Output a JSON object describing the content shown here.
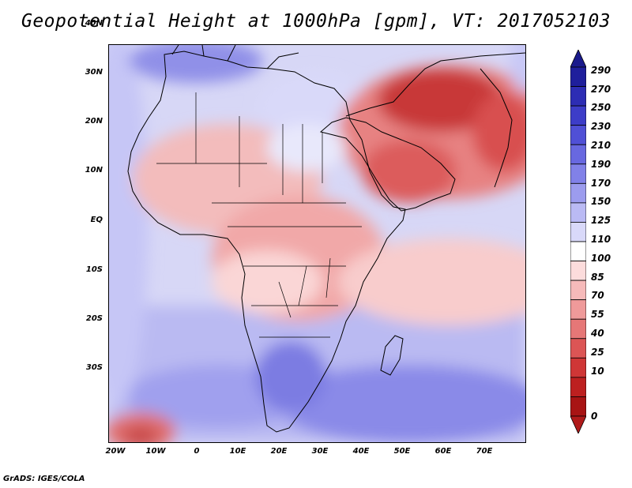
{
  "title": "Geopotential Height at 1000hPa [gpm], VT: 2017052103",
  "lat_labels": [
    "40N",
    "30N",
    "20N",
    "10N",
    "EQ",
    "10S",
    "20S",
    "30S"
  ],
  "lon_labels": [
    "20W",
    "10W",
    "0",
    "10E",
    "20E",
    "30E",
    "40E",
    "50E",
    "60E",
    "70E"
  ],
  "colorbar": {
    "labels": [
      "290",
      "270",
      "250",
      "230",
      "210",
      "190",
      "170",
      "150",
      "125",
      "110",
      "100",
      "85",
      "70",
      "55",
      "40",
      "25",
      "10",
      "0"
    ],
    "colors": [
      "#1f1f9c",
      "#2d2db4",
      "#3d3dc8",
      "#5050d6",
      "#6868e0",
      "#8181e8",
      "#9c9cee",
      "#babaf4",
      "#d9d9f9",
      "#ffffff",
      "#fcdcdc",
      "#f6baba",
      "#ef9a9a",
      "#e67777",
      "#dc5555",
      "#cf3636",
      "#bd2020",
      "#a81414"
    ],
    "arrow_top": "#1a1a8c",
    "arrow_bottom": "#b01a1a"
  },
  "colors": {
    "land_outline": "#000000"
  },
  "credit": "GrADS: IGES/COLA"
}
